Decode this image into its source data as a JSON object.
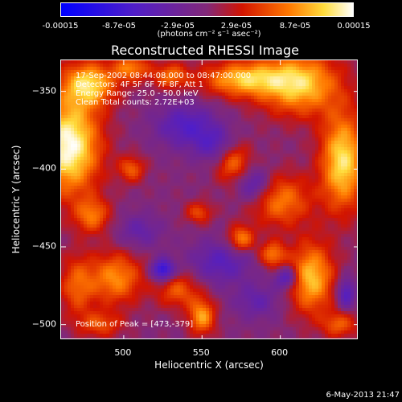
{
  "colorbar": {
    "ticks": [
      "-0.00015",
      "-8.7e-05",
      "-2.9e-05",
      "2.9e-05",
      "8.7e-05",
      "0.00015"
    ],
    "units": "(photons cm⁻² s⁻¹ asec⁻²)",
    "min": -0.00015,
    "max": 0.00015
  },
  "annotation": {
    "time_range": "17-Sep-2002 08:44:08.000 to 08:47:00.000",
    "detectors": "Detectors: 4F 5F 6F 7F 8F, Att 1",
    "energy": "Energy Range: 25.0 - 50.0 keV",
    "clean": "Clean     Total counts: 2.72E+03",
    "peak": "Position of Peak = [473,-379]"
  },
  "footer": {
    "date": "6-May-2013 21:47"
  },
  "chart_data": {
    "type": "heatmap",
    "title": "Reconstructed RHESSI Image",
    "xlabel": "Heliocentric X (arcsec)",
    "ylabel": "Heliocentric Y (arcsec)",
    "xlim": [
      460,
      650
    ],
    "ylim": [
      -510,
      -330
    ],
    "xticks": [
      500,
      550,
      600
    ],
    "yticks": [
      -350,
      -400,
      -450,
      -500
    ],
    "peak": [
      473,
      -379
    ],
    "blobs": [
      {
        "x": 465,
        "y": -385,
        "sx": 14,
        "sy": 22,
        "a": 1.0
      },
      {
        "x": 478,
        "y": -345,
        "sx": 12,
        "sy": 10,
        "a": 0.75
      },
      {
        "x": 505,
        "y": -335,
        "sx": 8,
        "sy": 6,
        "a": 0.55
      },
      {
        "x": 530,
        "y": -340,
        "sx": 8,
        "sy": 6,
        "a": 0.5
      },
      {
        "x": 575,
        "y": -342,
        "sx": 18,
        "sy": 8,
        "a": 0.7
      },
      {
        "x": 612,
        "y": -345,
        "sx": 18,
        "sy": 14,
        "a": 0.8
      },
      {
        "x": 640,
        "y": -395,
        "sx": 10,
        "sy": 22,
        "a": 0.85
      },
      {
        "x": 570,
        "y": -395,
        "sx": 8,
        "sy": 10,
        "a": 0.55
      },
      {
        "x": 600,
        "y": -420,
        "sx": 14,
        "sy": 12,
        "a": 0.55
      },
      {
        "x": 620,
        "y": -470,
        "sx": 10,
        "sy": 16,
        "a": 0.75
      },
      {
        "x": 575,
        "y": -445,
        "sx": 6,
        "sy": 6,
        "a": 0.6
      },
      {
        "x": 595,
        "y": -455,
        "sx": 6,
        "sy": 6,
        "a": 0.55
      },
      {
        "x": 550,
        "y": -495,
        "sx": 6,
        "sy": 8,
        "a": 0.65
      },
      {
        "x": 535,
        "y": -478,
        "sx": 10,
        "sy": 8,
        "a": 0.45
      },
      {
        "x": 495,
        "y": -470,
        "sx": 12,
        "sy": 12,
        "a": 0.6
      },
      {
        "x": 480,
        "y": -430,
        "sx": 8,
        "sy": 8,
        "a": 0.5
      },
      {
        "x": 470,
        "y": -475,
        "sx": 8,
        "sy": 14,
        "a": 0.45
      },
      {
        "x": 505,
        "y": -400,
        "sx": 6,
        "sy": 6,
        "a": 0.45
      },
      {
        "x": 548,
        "y": -428,
        "sx": 6,
        "sy": 5,
        "a": 0.4
      },
      {
        "x": 485,
        "y": -500,
        "sx": 10,
        "sy": 6,
        "a": 0.4
      },
      {
        "x": 638,
        "y": -500,
        "sx": 8,
        "sy": 6,
        "a": 0.45
      },
      {
        "x": 540,
        "y": -372,
        "sx": 14,
        "sy": 10,
        "a": -0.45
      },
      {
        "x": 560,
        "y": -385,
        "sx": 10,
        "sy": 8,
        "a": -0.4
      },
      {
        "x": 583,
        "y": -410,
        "sx": 8,
        "sy": 8,
        "a": -0.5
      },
      {
        "x": 562,
        "y": -460,
        "sx": 14,
        "sy": 10,
        "a": -0.4
      },
      {
        "x": 525,
        "y": -465,
        "sx": 5,
        "sy": 5,
        "a": -0.75
      },
      {
        "x": 604,
        "y": -470,
        "sx": 5,
        "sy": 5,
        "a": -0.55
      },
      {
        "x": 642,
        "y": -480,
        "sx": 4,
        "sy": 7,
        "a": -0.5
      },
      {
        "x": 585,
        "y": -485,
        "sx": 10,
        "sy": 8,
        "a": -0.3
      },
      {
        "x": 510,
        "y": -440,
        "sx": 10,
        "sy": 8,
        "a": -0.3
      }
    ]
  }
}
